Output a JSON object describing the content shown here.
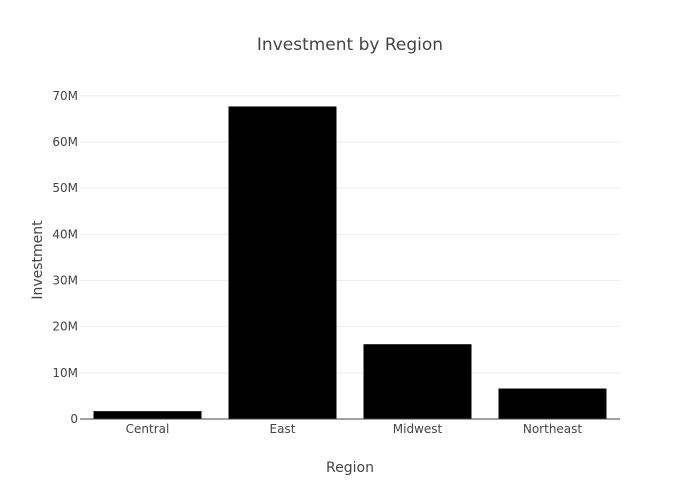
{
  "chart_data": {
    "type": "bar",
    "title": "Investment by Region",
    "xlabel": "Region",
    "ylabel": "Investment",
    "categories": [
      "Central",
      "East",
      "Midwest",
      "Northeast"
    ],
    "values": [
      1700000,
      67700000,
      16200000,
      6600000
    ],
    "ylim": [
      0,
      73000000
    ],
    "yticks": [
      0,
      10000000,
      20000000,
      30000000,
      40000000,
      50000000,
      60000000,
      70000000
    ],
    "ytick_labels": [
      "0",
      "10M",
      "20M",
      "30M",
      "40M",
      "50M",
      "60M",
      "70M"
    ],
    "grid": true,
    "bar_color": "#000000"
  }
}
